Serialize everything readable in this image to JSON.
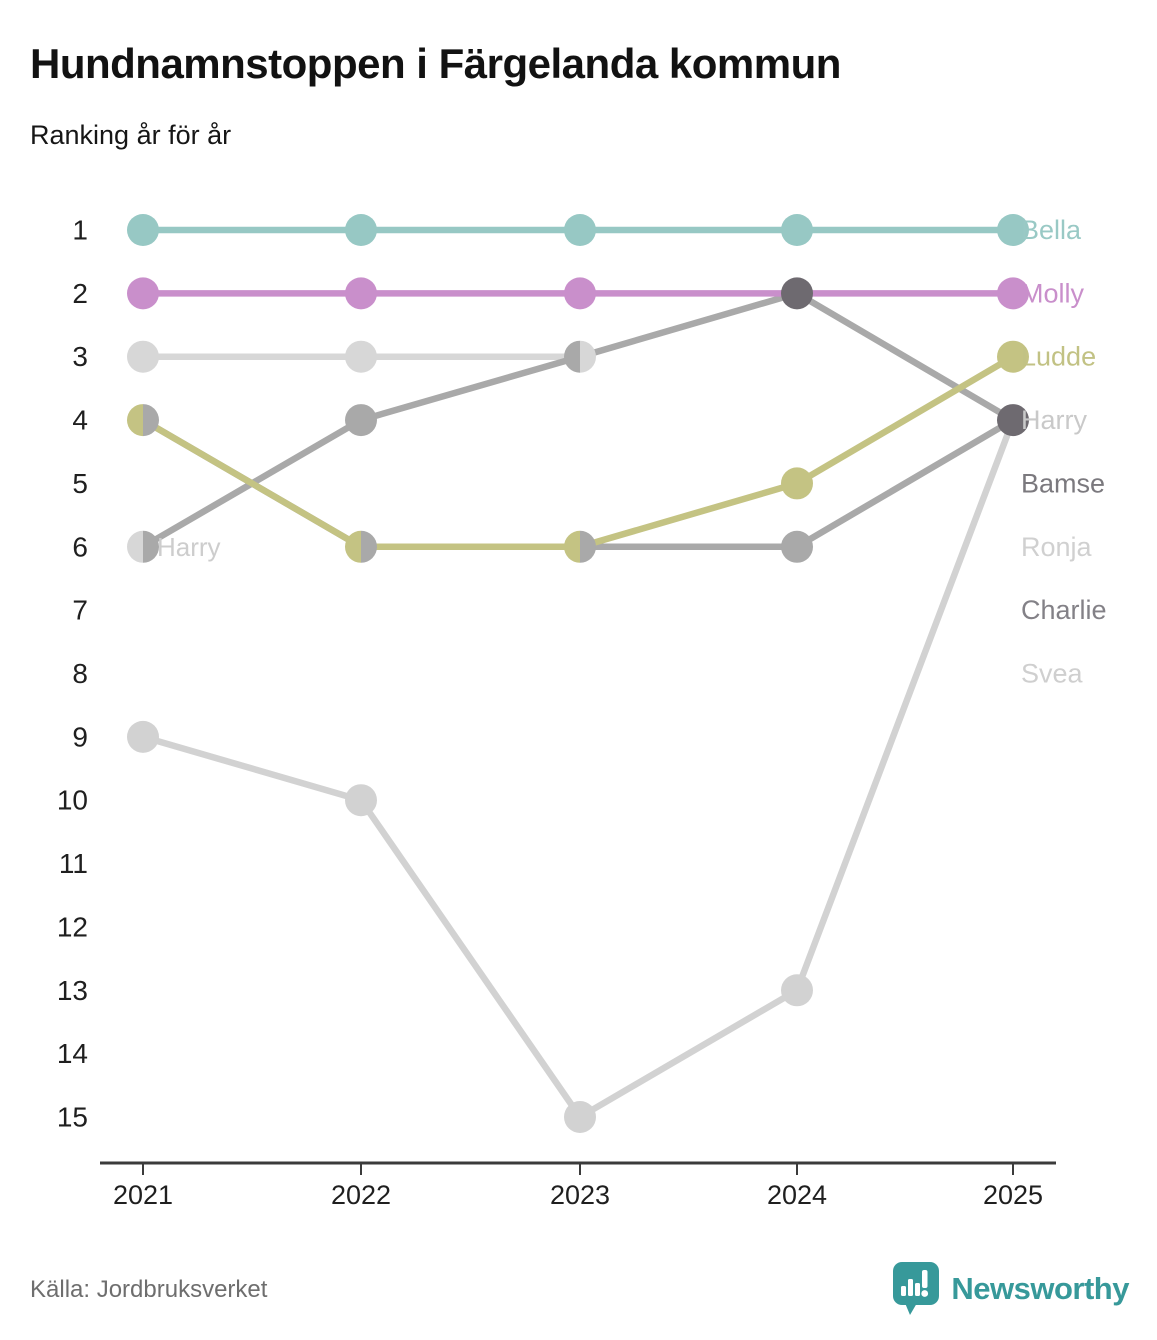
{
  "header": {
    "title": "Hundnamnstoppen i Färgelanda kommun",
    "subtitle": "Ranking år för år"
  },
  "footer": {
    "source": "Källa: Jordbruksverket",
    "brand_name": "Newsworthy",
    "brand_color": "#37999a"
  },
  "colors": {
    "teal": "#97c8c4",
    "pink": "#c98fcb",
    "olive": "#c4c383",
    "gray": "#a9a9a9",
    "light": "#d7d7d7",
    "light2": "#d2d2d2",
    "dark": "#6e6a70",
    "axis": "#3b3b3b",
    "tick_text": "#1f1f1f"
  },
  "chart_data": {
    "type": "line",
    "subtype": "bump-ranking",
    "title": "Hundnamnstoppen i Färgelanda kommun",
    "xlabel": "",
    "ylabel": "",
    "x": [
      2021,
      2022,
      2023,
      2024,
      2025
    ],
    "x_tick_labels": [
      "2021",
      "2022",
      "2023",
      "2024",
      "2025"
    ],
    "y_tick_labels": [
      "1",
      "2",
      "3",
      "4",
      "5",
      "6",
      "7",
      "8",
      "9",
      "10",
      "11",
      "12",
      "13",
      "14",
      "15"
    ],
    "y_axis_inverted": true,
    "ylim": [
      1,
      15
    ],
    "grid": false,
    "legend_position": "right-of-line-ends",
    "series": [
      {
        "name": "Bella",
        "color": "teal",
        "ranks": [
          1,
          1,
          1,
          1,
          1
        ]
      },
      {
        "name": "Molly",
        "color": "pink",
        "ranks": [
          2,
          2,
          2,
          2,
          2
        ]
      },
      {
        "name": "Ludde",
        "color": "olive",
        "ranks": [
          4,
          6,
          6,
          5,
          3
        ]
      },
      {
        "name": "Harry",
        "color": "gray",
        "ranks": [
          6,
          4,
          3,
          2,
          4
        ]
      },
      {
        "name": "Bamse",
        "color": "gray",
        "ranks": [
          4,
          6,
          6,
          6,
          4
        ]
      },
      {
        "name": "Ronja",
        "color": "light",
        "ranks": [
          3,
          3,
          3,
          null,
          4
        ]
      },
      {
        "name": "Charlie",
        "color": "light2",
        "ranks": [
          9,
          10,
          15,
          13,
          4
        ]
      },
      {
        "name": "Svea",
        "color": "light",
        "ranks": [
          6,
          null,
          null,
          null,
          4
        ]
      }
    ],
    "notes": "Ties drawn as split two-color dots; stacked tied dots in 2024 rank 2 and 2025 rank 4 render dark",
    "render": {
      "lines": [
        {
          "series": "Ronja",
          "color": "light",
          "points": [
            [
              0,
              3
            ],
            [
              1,
              3
            ],
            [
              2,
              3
            ]
          ]
        },
        {
          "series": "Charlie",
          "color": "light2",
          "points": [
            [
              0,
              9
            ],
            [
              1,
              10
            ],
            [
              2,
              15
            ],
            [
              3,
              13
            ],
            [
              4,
              4
            ]
          ]
        },
        {
          "series": "Bamse",
          "color": "gray",
          "points": [
            [
              0,
              4
            ],
            [
              1,
              6
            ],
            [
              2,
              6
            ],
            [
              3,
              6
            ],
            [
              4,
              4
            ]
          ]
        },
        {
          "series": "Harry",
          "color": "gray",
          "points": [
            [
              0,
              6
            ],
            [
              1,
              4
            ],
            [
              2,
              3
            ],
            [
              3,
              2
            ],
            [
              4,
              4
            ]
          ]
        },
        {
          "series": "Ludde",
          "color": "olive",
          "points": [
            [
              0,
              4
            ],
            [
              1,
              6
            ],
            [
              2,
              6
            ],
            [
              3,
              5
            ],
            [
              4,
              3
            ]
          ]
        },
        {
          "series": "Molly",
          "color": "pink",
          "points": [
            [
              0,
              2
            ],
            [
              1,
              2
            ],
            [
              2,
              2
            ],
            [
              3,
              2
            ],
            [
              4,
              2
            ]
          ]
        },
        {
          "series": "Bella",
          "color": "teal",
          "points": [
            [
              0,
              1
            ],
            [
              1,
              1
            ],
            [
              2,
              1
            ],
            [
              3,
              1
            ],
            [
              4,
              1
            ]
          ]
        }
      ],
      "dots": [
        {
          "i": 0,
          "r": 1,
          "fill": "teal"
        },
        {
          "i": 0,
          "r": 2,
          "fill": "pink"
        },
        {
          "i": 0,
          "r": 3,
          "fill": "light"
        },
        {
          "i": 0,
          "r": 4,
          "split": [
            "olive",
            "gray"
          ]
        },
        {
          "i": 0,
          "r": 6,
          "split": [
            "light",
            "gray"
          ]
        },
        {
          "i": 0,
          "r": 9,
          "fill": "light2"
        },
        {
          "i": 1,
          "r": 1,
          "fill": "teal"
        },
        {
          "i": 1,
          "r": 2,
          "fill": "pink"
        },
        {
          "i": 1,
          "r": 3,
          "fill": "light"
        },
        {
          "i": 1,
          "r": 4,
          "fill": "gray"
        },
        {
          "i": 1,
          "r": 6,
          "split": [
            "olive",
            "gray"
          ]
        },
        {
          "i": 1,
          "r": 10,
          "fill": "light2"
        },
        {
          "i": 2,
          "r": 1,
          "fill": "teal"
        },
        {
          "i": 2,
          "r": 2,
          "fill": "pink"
        },
        {
          "i": 2,
          "r": 3,
          "split": [
            "gray",
            "light"
          ]
        },
        {
          "i": 2,
          "r": 6,
          "split": [
            "olive",
            "gray"
          ]
        },
        {
          "i": 2,
          "r": 15,
          "fill": "light2"
        },
        {
          "i": 3,
          "r": 1,
          "fill": "teal"
        },
        {
          "i": 3,
          "r": 2,
          "fill": "dark"
        },
        {
          "i": 3,
          "r": 5,
          "fill": "olive"
        },
        {
          "i": 3,
          "r": 6,
          "fill": "gray"
        },
        {
          "i": 3,
          "r": 13,
          "fill": "light2"
        },
        {
          "i": 4,
          "r": 1,
          "fill": "teal"
        },
        {
          "i": 4,
          "r": 2,
          "fill": "pink"
        },
        {
          "i": 4,
          "r": 3,
          "fill": "olive"
        },
        {
          "i": 4,
          "r": 4,
          "fill": "dark"
        }
      ],
      "left_labels": [
        {
          "text": "Harry",
          "color": "#cdcdcd",
          "i": 0,
          "row": 6
        }
      ],
      "right_labels": [
        {
          "text": "Bella",
          "color": "#99c9c5",
          "row": 1
        },
        {
          "text": "Molly",
          "color": "#c98fcb",
          "row": 2
        },
        {
          "text": "Ludde",
          "color": "#c2c284",
          "row": 3
        },
        {
          "text": "Harry",
          "color": "#c9c9c9",
          "row": 4
        },
        {
          "text": "Bamse",
          "color": "#7b797e",
          "row": 5
        },
        {
          "text": "Ronja",
          "color": "#d0d0d0",
          "row": 6
        },
        {
          "text": "Charlie",
          "color": "#838187",
          "row": 7
        },
        {
          "text": "Svea",
          "color": "#cfcfcf",
          "row": 8
        }
      ]
    }
  }
}
